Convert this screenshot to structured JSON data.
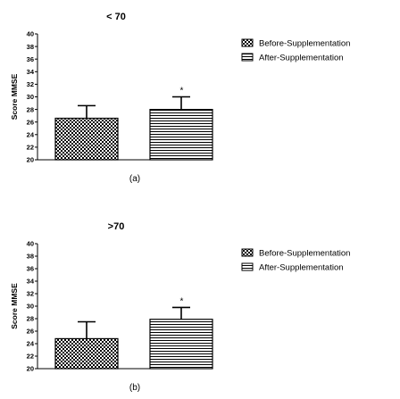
{
  "chart_data": [
    {
      "type": "bar",
      "title": "< 70",
      "panel_label": "(a)",
      "ylabel": "Score MMSE",
      "ylim": [
        20,
        40
      ],
      "yticks": [
        20,
        22,
        24,
        26,
        28,
        30,
        32,
        34,
        36,
        38,
        40
      ],
      "series": [
        {
          "name": "Before-Supplementation",
          "values": [
            26.6
          ],
          "error": [
            2.0
          ],
          "pattern": "checker"
        },
        {
          "name": "After-Supplementation",
          "values": [
            28.0
          ],
          "error": [
            2.0
          ],
          "pattern": "hlines",
          "annotation": "*"
        }
      ],
      "legend": "top-right",
      "grid": false
    },
    {
      "type": "bar",
      "title": ">70",
      "panel_label": "(b)",
      "ylabel": "Score MMSE",
      "ylim": [
        20,
        40
      ],
      "yticks": [
        20,
        22,
        24,
        26,
        28,
        30,
        32,
        34,
        36,
        38,
        40
      ],
      "series": [
        {
          "name": "Before-Supplementation",
          "values": [
            24.8
          ],
          "error": [
            2.7
          ],
          "pattern": "checker"
        },
        {
          "name": "After-Supplementation",
          "values": [
            27.9
          ],
          "error": [
            1.9
          ],
          "pattern": "hlines",
          "annotation": "*"
        }
      ],
      "legend": "top-right",
      "grid": false
    }
  ]
}
